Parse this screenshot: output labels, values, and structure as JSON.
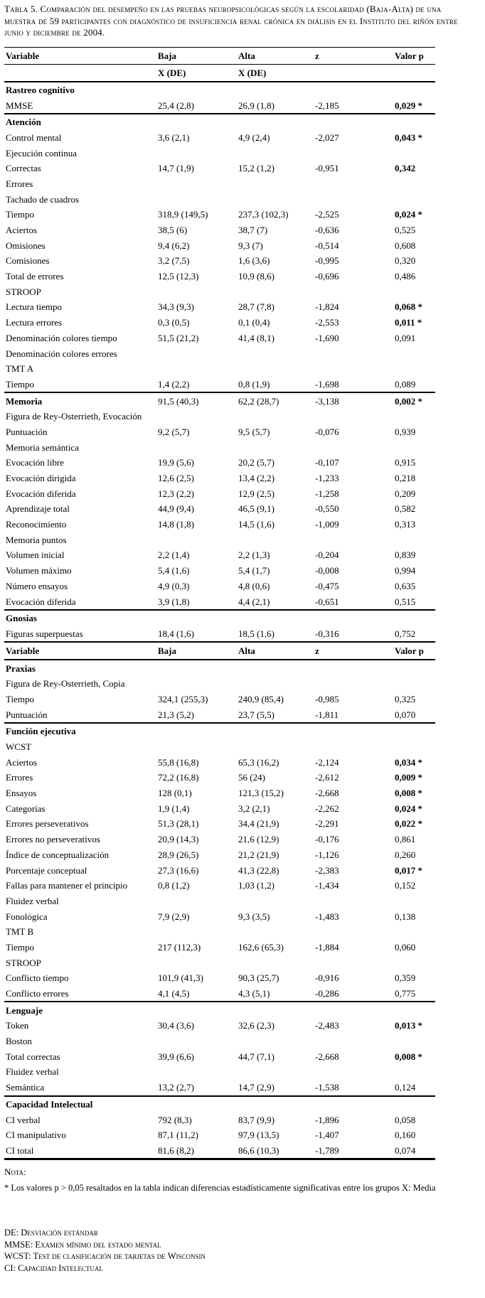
{
  "title": "Tabla 5. Comparación del desempeño en las pruebas neuropsicológicas según la escolaridad (Baja-Alta) de una muestra de 59 participantes con diagnóstico de insuficiencia renal crónica en diálisis en el Instituto del riñón entre junio y diciembre de 2004.",
  "note_label": "Nota:",
  "note": "* Los valores p > 0,05 resaltados en la tabla indican diferencias estadísticamente significativas entre los grupos X: Media",
  "abbreviations": [
    "DE: Desviación estándar",
    "MMSE: Examen mínimo del estado mental",
    "WCST: Test de clasificación de tarjetas de Wisconsin",
    "CI: Capacidad Intelectual"
  ],
  "table": {
    "columns": [
      "Variable",
      "Baja",
      "Alta",
      "z",
      "Valor p"
    ],
    "rows": [
      {
        "type": "header",
        "label": "Variable",
        "baja": "Baja",
        "alta": "Alta",
        "z": "z",
        "p": "Valor p",
        "rule": "thin"
      },
      {
        "type": "subheader",
        "label": "",
        "baja": "X (DE)",
        "alta": "X (DE)",
        "z": "",
        "p": "",
        "rule": "thick"
      },
      {
        "type": "section",
        "label": "Rastreo cognitivo"
      },
      {
        "type": "data",
        "label": "MMSE",
        "baja": "25,4 (2,8)",
        "alta": "26,9 (1,8)",
        "z": "-2,185",
        "p": "0,029 *",
        "p_bold": true,
        "rule": "thick"
      },
      {
        "type": "section",
        "label": "Atención"
      },
      {
        "type": "data",
        "label": "Control mental",
        "baja": "3,6 (2,1)",
        "alta": "4,9 (2,4)",
        "z": "-2,027",
        "p": "0,043 *",
        "p_bold": true
      },
      {
        "type": "label",
        "label": "Ejecución continua"
      },
      {
        "type": "data",
        "label": "Correctas",
        "baja": "14,7 (1,9)",
        "alta": "15,2 (1,2)",
        "z": "-0,951",
        "p": "0,342",
        "p_bold": true
      },
      {
        "type": "label",
        "label": "Errores"
      },
      {
        "type": "label",
        "label": "Tachado de cuadros"
      },
      {
        "type": "data",
        "label": "Tiempo",
        "baja": "318,9 (149,5)",
        "alta": "237,3 (102,3)",
        "z": "-2,525",
        "p": "0,024 *",
        "p_bold": true
      },
      {
        "type": "data",
        "label": "Aciertos",
        "baja": "38,5 (6)",
        "alta": "38,7 (7)",
        "z": "-0,636",
        "p": "0,525"
      },
      {
        "type": "data",
        "label": "Omisiones",
        "baja": "9,4 (6,2)",
        "alta": "9,3 (7)",
        "z": "-0,514",
        "p": "0,608"
      },
      {
        "type": "data",
        "label": "Comisiones",
        "baja": "3,2 (7,5)",
        "alta": "1,6 (3,6)",
        "z": "-0,995",
        "p": "0,320"
      },
      {
        "type": "data",
        "label": "Total de errores",
        "baja": "12,5 (12,3)",
        "alta": "10,9 (8,6)",
        "z": "-0,696",
        "p": "0,486"
      },
      {
        "type": "label",
        "label": "STROOP"
      },
      {
        "type": "data",
        "label": "Lectura tiempo",
        "baja": "34,3 (9,3)",
        "alta": "28,7 (7,8)",
        "z": "-1,824",
        "p": "0,068 *",
        "p_bold": true
      },
      {
        "type": "data",
        "label": "Lectura errores",
        "baja": "0,3 (0,5)",
        "alta": "0,1 (0,4)",
        "z": "-2,553",
        "p": "0,011 *",
        "p_bold": true
      },
      {
        "type": "data",
        "label": "Denominación colores tiempo",
        "baja": "51,5 (21,2)",
        "alta": "41,4 (8,1)",
        "z": "-1,690",
        "p": "0,091"
      },
      {
        "type": "label",
        "label": "Denominación colores errores"
      },
      {
        "type": "label",
        "label": "TMT A"
      },
      {
        "type": "data",
        "label": "Tiempo",
        "baja": "1,4 (2,2)",
        "alta": "0,8 (1,9)",
        "z": "-1,698",
        "p": "0,089",
        "rule": "thick"
      },
      {
        "type": "section",
        "label": "Memoria",
        "baja": "91,5 (40,3)",
        "alta": "62,2 (28,7)",
        "z": "-3,138",
        "p": "0,002 *",
        "p_bold": true
      },
      {
        "type": "label",
        "label": "Figura de Rey-Osterrieth, Evocación"
      },
      {
        "type": "data",
        "label": "Puntuación",
        "baja": "9,2 (5,7)",
        "alta": "9,5 (5,7)",
        "z": "-0,076",
        "p": "0,939"
      },
      {
        "type": "label",
        "label": "Memoria semántica"
      },
      {
        "type": "data",
        "label": "Evocación libre",
        "baja": "19,9 (5,6)",
        "alta": "20,2 (5,7)",
        "z": "-0,107",
        "p": "0,915"
      },
      {
        "type": "data",
        "label": "Evocación dirigida",
        "baja": "12,6 (2,5)",
        "alta": "13,4 (2,2)",
        "z": "-1,233",
        "p": "0,218"
      },
      {
        "type": "data",
        "label": "Evocación diferida",
        "baja": "12,3 (2,2)",
        "alta": "12,9 (2,5)",
        "z": "-1,258",
        "p": "0,209"
      },
      {
        "type": "data",
        "label": "Aprendizaje total",
        "baja": "44,9 (9,4)",
        "alta": "46,5 (9,1)",
        "z": "-0,550",
        "p": "0,582"
      },
      {
        "type": "data",
        "label": "Reconocimiento",
        "baja": "14,8 (1,8)",
        "alta": "14,5 (1,6)",
        "z": "-1,009",
        "p": "0,313"
      },
      {
        "type": "label",
        "label": "Memoria puntos"
      },
      {
        "type": "data",
        "label": "Volumen inicial",
        "baja": "2,2 (1,4)",
        "alta": "2,2 (1,3)",
        "z": "-0,204",
        "p": "0,839"
      },
      {
        "type": "data",
        "label": "Volumen máximo",
        "baja": "5,4 (1,6)",
        "alta": "5,4 (1,7)",
        "z": "-0,008",
        "p": "0,994"
      },
      {
        "type": "data",
        "label": "Número ensayos",
        "baja": "4,9 (0,3)",
        "alta": "4,8 (0,6)",
        "z": "-0,475",
        "p": "0,635"
      },
      {
        "type": "data",
        "label": "Evocación diferida",
        "baja": "3,9 (1,8)",
        "alta": "4,4 (2,1)",
        "z": "-0,651",
        "p": "0,515",
        "rule": "thick"
      },
      {
        "type": "section",
        "label": "Gnosias"
      },
      {
        "type": "data",
        "label": "Figuras superpuestas",
        "baja": "18,4 (1,6)",
        "alta": "18,5 (1,6)",
        "z": "-0,316",
        "p": "0,752",
        "rule": "thick"
      },
      {
        "type": "header",
        "label": "Variable",
        "baja": "Baja",
        "alta": "Alta",
        "z": "z",
        "p": "Valor p",
        "rule": "thick"
      },
      {
        "type": "section",
        "label": "Praxias"
      },
      {
        "type": "label",
        "label": "Figura de Rey-Osterrieth, Copia"
      },
      {
        "type": "data",
        "label": "Tiempo",
        "baja": "324,1 (255,3)",
        "alta": "240,9 (85,4)",
        "z": "-0,985",
        "p": "0,325"
      },
      {
        "type": "data",
        "label": "Puntuación",
        "baja": "21,3 (5,2)",
        "alta": "23,7 (5,5)",
        "z": "-1,811",
        "p": "0,070",
        "rule": "thick"
      },
      {
        "type": "section",
        "label": "Función ejecutiva"
      },
      {
        "type": "label",
        "label": "WCST"
      },
      {
        "type": "data",
        "label": "Aciertos",
        "baja": "55,8 (16,8)",
        "alta": "65,3 (16,2)",
        "z": "-2,124",
        "p": "0,034 *",
        "p_bold": true
      },
      {
        "type": "data",
        "label": "Errores",
        "baja": "72,2 (16,8)",
        "alta": "56 (24)",
        "z": "-2,612",
        "p": "0,009 *",
        "p_bold": true
      },
      {
        "type": "data",
        "label": "Ensayos",
        "baja": "128 (0,1)",
        "alta": "121,3 (15,2)",
        "z": "-2,668",
        "p": "0,008 *",
        "p_bold": true
      },
      {
        "type": "data",
        "label": "Categorías",
        "baja": "1,9 (1,4)",
        "alta": "3,2 (2,1)",
        "z": "-2,262",
        "p": "0,024 *",
        "p_bold": true
      },
      {
        "type": "data",
        "label": "Errores perseverativos",
        "baja": "51,3 (28,1)",
        "alta": "34,4 (21,9)",
        "z": "-2,291",
        "p": "0,022 *",
        "p_bold": true
      },
      {
        "type": "data",
        "label": "Errores no perseverativos",
        "baja": "20,9 (14,3)",
        "alta": "21,6 (12,9)",
        "z": "-0,176",
        "p": "0,861"
      },
      {
        "type": "data",
        "label": "Índice de conceptualización",
        "baja": "28,9 (26,5)",
        "alta": "21,2 (21,9)",
        "z": "-1,126",
        "p": "0,260"
      },
      {
        "type": "data",
        "label": "Porcentaje conceptual",
        "baja": "27,3 (16,6)",
        "alta": "41,3 (22,8)",
        "z": "-2,383",
        "p": "0,017 *",
        "p_bold": true
      },
      {
        "type": "data",
        "label": "Fallas para mantener el principio",
        "baja": "0,8 (1,2)",
        "alta": "1,03 (1,2)",
        "z": "-1,434",
        "p": "0,152"
      },
      {
        "type": "label",
        "label": "Fluidez verbal"
      },
      {
        "type": "data",
        "label": "Fonológica",
        "baja": "7,9 (2,9)",
        "alta": "9,3 (3,5)",
        "z": "-1,483",
        "p": "0,138"
      },
      {
        "type": "label",
        "label": "TMT B"
      },
      {
        "type": "data",
        "label": "Tiempo",
        "baja": "217 (112,3)",
        "alta": "162,6 (65,3)",
        "z": "-1,884",
        "p": "0,060"
      },
      {
        "type": "label",
        "label": "STROOP"
      },
      {
        "type": "data",
        "label": "Conflicto tiempo",
        "baja": "101,9 (41,3)",
        "alta": "90,3 (25,7)",
        "z": "-0,916",
        "p": "0,359"
      },
      {
        "type": "data",
        "label": "Conflicto errores",
        "baja": "4,1 (4,5)",
        "alta": "4,3 (5,1)",
        "z": "-0,286",
        "p": "0,775",
        "rule": "thick"
      },
      {
        "type": "section",
        "label": "Lenguaje"
      },
      {
        "type": "data",
        "label": "Token",
        "baja": "30,4 (3,6)",
        "alta": "32,6 (2,3)",
        "z": "-2,483",
        "p": "0,013 *",
        "p_bold": true
      },
      {
        "type": "label",
        "label": "Boston"
      },
      {
        "type": "data",
        "label": "Total correctas",
        "baja": "39,9 (6,6)",
        "alta": "44,7 (7,1)",
        "z": "-2,668",
        "p": "0,008 *",
        "p_bold": true
      },
      {
        "type": "label",
        "label": "Fluidez verbal"
      },
      {
        "type": "data",
        "label": "Semántica",
        "baja": "13,2 (2,7)",
        "alta": "14,7 (2,9)",
        "z": "-1,538",
        "p": "0,124",
        "rule": "thick"
      },
      {
        "type": "section",
        "label": "Capacidad Intelectual"
      },
      {
        "type": "data",
        "label": "CI verbal",
        "baja": "792 (8,3)",
        "alta": "83,7 (9,9)",
        "z": "-1,896",
        "p": "0,058"
      },
      {
        "type": "data",
        "label": "CI manipulativo",
        "baja": "87,1 (11,2)",
        "alta": "97,9 (13,5)",
        "z": "-1,407",
        "p": "0,160"
      },
      {
        "type": "data",
        "label": "CI total",
        "baja": "81,6 (8,2)",
        "alta": "86,6 (10,3)",
        "z": "-1,789",
        "p": "0,074",
        "rule": "bottom"
      }
    ]
  }
}
